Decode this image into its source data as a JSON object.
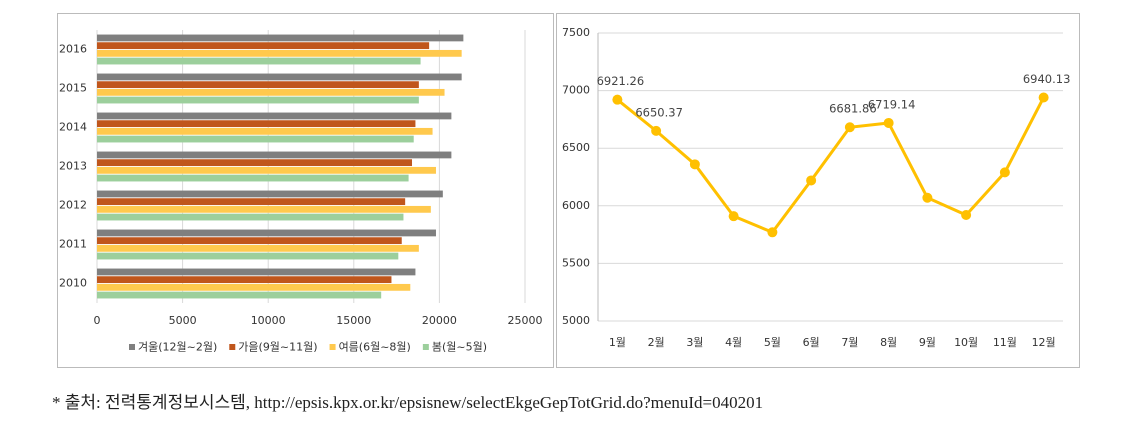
{
  "chart_data": [
    {
      "type": "bar",
      "orientation": "horizontal",
      "categories": [
        "2016",
        "2015",
        "2014",
        "2013",
        "2012",
        "2011",
        "2010"
      ],
      "series": [
        {
          "name": "겨울(12월~2월)",
          "color": "#7f7f7f",
          "values": [
            21400,
            21300,
            20700,
            20700,
            20200,
            19800,
            18600
          ]
        },
        {
          "name": "가을(9월~11월)",
          "color": "#c0561c",
          "values": [
            19400,
            18800,
            18600,
            18400,
            18000,
            17800,
            17200
          ]
        },
        {
          "name": "여름(6월~8월)",
          "color": "#ffc94d",
          "values": [
            21300,
            20300,
            19600,
            19800,
            19500,
            18800,
            18300
          ]
        },
        {
          "name": "봄(월~5월)",
          "color": "#9ccf9c",
          "values": [
            18900,
            18800,
            18500,
            18200,
            17900,
            17600,
            16600
          ]
        }
      ],
      "xlim": [
        0,
        25000
      ],
      "xticks": [
        0,
        5000,
        10000,
        15000,
        20000,
        25000
      ],
      "grid": true,
      "legend": "bottom"
    },
    {
      "type": "line",
      "categories": [
        "1월",
        "2월",
        "3월",
        "4월",
        "5월",
        "6월",
        "7월",
        "8월",
        "9월",
        "10월",
        "11월",
        "12월"
      ],
      "series": [
        {
          "name": null,
          "color": "#ffc000",
          "values": [
            6921.26,
            6650.37,
            6360,
            5910,
            5770,
            6220,
            6681.86,
            6719.14,
            6070,
            5920,
            6290,
            6940.13
          ],
          "value_labels": [
            "6921.26",
            "6650.37",
            null,
            null,
            null,
            null,
            "6681.86",
            "6719.14",
            null,
            null,
            null,
            "6940.13"
          ]
        }
      ],
      "ylim": [
        5000,
        7500
      ],
      "yticks": [
        5000,
        5500,
        6000,
        6500,
        7000,
        7500
      ],
      "grid": true
    }
  ],
  "source": "* 출처: 전력통계정보시스템, http://epsis.kpx.or.kr/epsisnew/selectEkgeGepTotGrid.do?menuId=040201"
}
